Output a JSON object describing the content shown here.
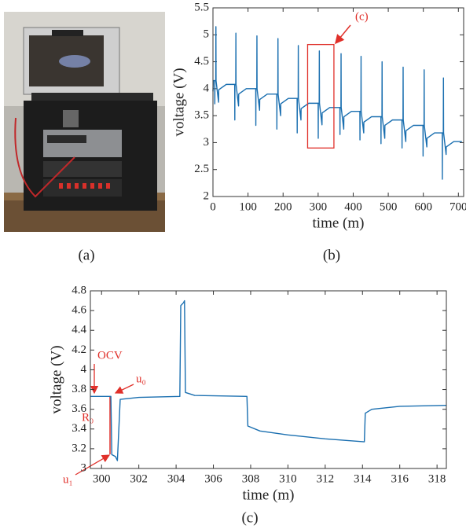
{
  "captions": [
    "(a)",
    "(b)",
    "(c)"
  ],
  "chart_data": [
    {
      "type": "line",
      "xlabel": "time (m)",
      "ylabel": "voltage (V)",
      "color": "#1a6fb0",
      "xlim": [
        0,
        715
      ],
      "xticks": [
        0,
        100,
        200,
        300,
        400,
        500,
        600,
        700
      ],
      "ylim": [
        2,
        5.5
      ],
      "yticks": [
        2,
        2.5,
        3,
        3.5,
        4,
        4.5,
        5,
        5.5
      ],
      "highlight": {
        "xlim": [
          270,
          345
        ],
        "ylim": [
          2.9,
          4.82
        ],
        "color": "#e0302a",
        "label": "(c)"
      },
      "x": [
        0,
        1,
        5,
        5.3,
        5.6,
        8,
        8.4,
        8.8,
        16,
        16.4,
        38,
        62,
        62.3,
        62.6,
        65,
        65.4,
        65.8,
        73,
        73.4,
        95,
        122,
        122.3,
        122.6,
        125,
        125.4,
        125.8,
        133,
        133.4,
        155,
        182,
        182.3,
        182.6,
        185,
        185.4,
        185.8,
        193,
        193.4,
        215,
        240,
        240.3,
        240.6,
        243,
        243.4,
        243.8,
        251,
        251.4,
        273,
        300,
        300.3,
        300.6,
        303,
        303.4,
        303.8,
        311,
        311.4,
        333,
        362,
        362.3,
        362.6,
        365,
        365.4,
        365.8,
        373,
        373.4,
        395,
        419,
        419.3,
        419.6,
        422,
        422.4,
        422.8,
        430,
        430.4,
        452,
        479,
        479.3,
        479.6,
        482,
        482.4,
        482.8,
        490,
        490.4,
        512,
        539,
        539.3,
        539.6,
        542,
        542.4,
        542.8,
        550,
        550.4,
        572,
        599,
        599.3,
        599.6,
        602,
        602.4,
        602.8,
        610,
        610.4,
        632,
        654,
        654.3,
        654.6,
        657,
        657.4,
        657.8,
        665,
        665.4,
        687,
        710
      ],
      "values": [
        3.95,
        4.15,
        4.15,
        3.72,
        4.15,
        4.15,
        5.15,
        4.15,
        3.75,
        3.98,
        4.08,
        4.08,
        3.42,
        4.08,
        4.08,
        5.03,
        4.08,
        3.68,
        3.9,
        4.0,
        4.0,
        3.32,
        4.0,
        4.0,
        4.98,
        4.0,
        3.6,
        3.8,
        3.9,
        3.9,
        3.25,
        3.9,
        3.9,
        4.93,
        3.9,
        3.5,
        3.72,
        3.82,
        3.82,
        3.18,
        3.82,
        3.82,
        4.8,
        3.82,
        3.42,
        3.63,
        3.73,
        3.73,
        3.08,
        3.73,
        3.73,
        4.7,
        3.73,
        3.33,
        3.55,
        3.65,
        3.65,
        3.15,
        3.65,
        3.65,
        4.65,
        3.65,
        3.25,
        3.48,
        3.58,
        3.58,
        3.05,
        3.58,
        3.58,
        4.6,
        3.58,
        3.18,
        3.38,
        3.48,
        3.48,
        2.98,
        3.48,
        3.48,
        4.5,
        3.48,
        3.08,
        3.32,
        3.42,
        3.42,
        2.9,
        3.42,
        3.42,
        4.4,
        3.42,
        3.02,
        3.22,
        3.32,
        3.32,
        2.75,
        3.32,
        3.32,
        4.35,
        3.32,
        2.92,
        3.08,
        3.18,
        3.18,
        2.32,
        3.18,
        3.18,
        4.2,
        3.18,
        2.78,
        2.92,
        3.02,
        3.02
      ]
    },
    {
      "type": "line",
      "xlabel": "time (m)",
      "ylabel": "voltage (V)",
      "color": "#1a6fb0",
      "xlim": [
        299.4,
        318.5
      ],
      "xticks": [
        300,
        302,
        304,
        306,
        308,
        310,
        312,
        314,
        316,
        318
      ],
      "ylim": [
        3,
        4.8
      ],
      "yticks": [
        3,
        3.2,
        3.4,
        3.6,
        3.8,
        4,
        4.2,
        4.4,
        4.6,
        4.8
      ],
      "annotations": [
        "OCV",
        "u₀",
        "R₀",
        "u₁"
      ],
      "x": [
        299.4,
        300.5,
        300.55,
        300.75,
        300.85,
        301,
        302,
        304.2,
        304.25,
        304.4,
        304.45,
        304.5,
        305,
        307.8,
        307.85,
        308.5,
        310,
        312,
        314.1,
        314.15,
        314.5,
        316,
        318.5
      ],
      "values": [
        3.73,
        3.73,
        3.14,
        3.12,
        3.08,
        3.7,
        3.72,
        3.73,
        4.65,
        4.68,
        4.7,
        3.77,
        3.74,
        3.73,
        3.43,
        3.38,
        3.34,
        3.3,
        3.27,
        3.56,
        3.6,
        3.63,
        3.64
      ]
    }
  ]
}
